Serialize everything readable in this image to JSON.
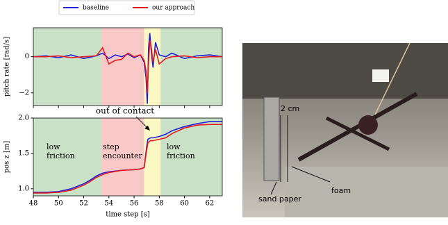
{
  "chart_data": [
    {
      "type": "line",
      "ylabel": "pitch rate [rad/s]",
      "x": [
        48,
        49,
        50,
        51,
        52,
        53,
        53.5,
        54,
        54.5,
        55,
        55.5,
        56,
        56.5,
        56.8,
        56.95,
        57.05,
        57.15,
        57.25,
        57.35,
        57.5,
        57.7,
        58,
        58.5,
        59,
        60,
        61,
        62,
        63
      ],
      "series": [
        {
          "name": "baseline",
          "color": "#1f1fdc",
          "values": [
            0,
            0.05,
            -0.05,
            0.1,
            -0.1,
            0.05,
            0.2,
            -0.1,
            0.1,
            0,
            0.15,
            -0.05,
            0.1,
            -0.3,
            -1.2,
            -2.6,
            0.5,
            1.3,
            0.4,
            -0.6,
            0.8,
            0.1,
            0,
            0.2,
            -0.1,
            0.05,
            0.1,
            0
          ]
        },
        {
          "name": "our approach",
          "color": "#e41a1c",
          "values": [
            0,
            0,
            0.05,
            -0.05,
            0,
            0.05,
            0.5,
            -0.4,
            -0.2,
            -0.15,
            0.2,
            0,
            0.1,
            -0.2,
            -0.8,
            -2.0,
            -0.3,
            0.9,
            0.6,
            -0.3,
            0.4,
            -0.4,
            -0.1,
            0,
            0.05,
            -0.05,
            0,
            0
          ]
        }
      ],
      "regions": [
        {
          "from": 48,
          "to": 53.4,
          "color": "#c9e1c7"
        },
        {
          "from": 53.4,
          "to": 56.8,
          "color": "#f8c9c7"
        },
        {
          "from": 56.8,
          "to": 58.1,
          "color": "#fbf8c3"
        },
        {
          "from": 58.1,
          "to": 63,
          "color": "#c9e1c7"
        }
      ],
      "xlim": [
        48,
        63
      ],
      "xticks": [
        48,
        50,
        52,
        54,
        56,
        58,
        60,
        62
      ],
      "ylim": [
        -2.7,
        1.6
      ],
      "yticks": [
        {
          "value": -2,
          "label": "−2"
        },
        0
      ]
    },
    {
      "type": "line",
      "ylabel": "pos z [m]",
      "xlabel": "time step [s]",
      "x": [
        48,
        49,
        50,
        51,
        52,
        52.5,
        53,
        53.5,
        54,
        55,
        56,
        56.5,
        56.8,
        57,
        57.1,
        57.3,
        57.5,
        58,
        58.5,
        59,
        60,
        61,
        62,
        63
      ],
      "series": [
        {
          "color": "#1f1fdc",
          "values": [
            0.95,
            0.95,
            0.96,
            1.0,
            1.07,
            1.12,
            1.18,
            1.22,
            1.24,
            1.26,
            1.27,
            1.28,
            1.3,
            1.6,
            1.7,
            1.72,
            1.72,
            1.74,
            1.77,
            1.82,
            1.88,
            1.92,
            1.95,
            1.95
          ]
        },
        {
          "color": "#e41a1c",
          "values": [
            0.94,
            0.94,
            0.95,
            0.98,
            1.05,
            1.1,
            1.16,
            1.2,
            1.23,
            1.26,
            1.27,
            1.28,
            1.3,
            1.55,
            1.65,
            1.68,
            1.68,
            1.7,
            1.72,
            1.78,
            1.86,
            1.9,
            1.91,
            1.91
          ]
        }
      ],
      "regions": [
        {
          "from": 48,
          "to": 53.4,
          "color": "#c9e1c7"
        },
        {
          "from": 53.4,
          "to": 56.8,
          "color": "#f8c9c7"
        },
        {
          "from": 56.8,
          "to": 58.1,
          "color": "#fbf8c3"
        },
        {
          "from": 58.1,
          "to": 63,
          "color": "#c9e1c7"
        }
      ],
      "annotations": [
        {
          "lines": [
            "low",
            "friction"
          ]
        },
        {
          "lines": [
            "step",
            "encounter"
          ]
        },
        {
          "lines": [
            "low",
            "friction"
          ]
        },
        {
          "lines": [
            "out of contact"
          ]
        }
      ],
      "xlim": [
        48,
        63
      ],
      "xticks": [
        48,
        50,
        52,
        54,
        56,
        58,
        60,
        62
      ],
      "ylim": [
        0.9,
        2.0
      ],
      "yticks": [
        {
          "value": 1,
          "label": "1.0"
        },
        1.5,
        {
          "value": 2,
          "label": "2.0"
        }
      ]
    }
  ],
  "photo": {
    "labels": [
      "2 cm",
      "sand paper",
      "foam"
    ]
  }
}
